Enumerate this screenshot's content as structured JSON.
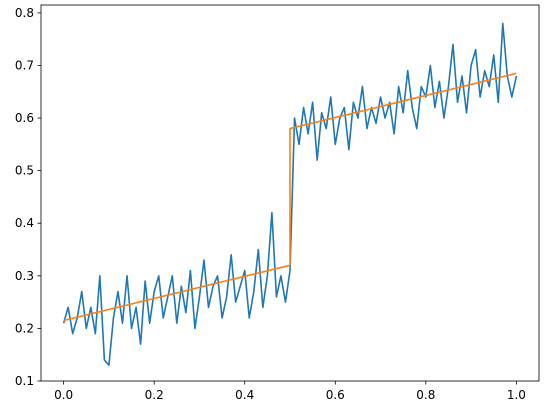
{
  "chart_data": {
    "type": "line",
    "title": "",
    "xlabel": "",
    "ylabel": "",
    "xlim": [
      -0.05,
      1.05
    ],
    "ylim": [
      0.1,
      0.815
    ],
    "xticks": [
      {
        "value": 0.0,
        "label": "0.0"
      },
      {
        "value": 0.2,
        "label": "0.2"
      },
      {
        "value": 0.4,
        "label": "0.4"
      },
      {
        "value": 0.6,
        "label": "0.6"
      },
      {
        "value": 0.8,
        "label": "0.8"
      },
      {
        "value": 1.0,
        "label": "1.0"
      }
    ],
    "yticks": [
      {
        "value": 0.1,
        "label": "0.1"
      },
      {
        "value": 0.2,
        "label": "0.2"
      },
      {
        "value": 0.3,
        "label": "0.3"
      },
      {
        "value": 0.4,
        "label": "0.4"
      },
      {
        "value": 0.5,
        "label": "0.5"
      },
      {
        "value": 0.6,
        "label": "0.6"
      },
      {
        "value": 0.7,
        "label": "0.7"
      },
      {
        "value": 0.8,
        "label": "0.8"
      }
    ],
    "grid": false,
    "legend": false,
    "series": [
      {
        "color": "#1f77b4",
        "x": [
          0.0,
          0.01,
          0.02,
          0.03,
          0.04,
          0.05,
          0.06,
          0.07,
          0.08,
          0.09,
          0.1,
          0.11,
          0.12,
          0.13,
          0.14,
          0.15,
          0.16,
          0.17,
          0.18,
          0.19,
          0.2,
          0.21,
          0.22,
          0.23,
          0.24,
          0.25,
          0.26,
          0.27,
          0.28,
          0.29,
          0.3,
          0.31,
          0.32,
          0.33,
          0.34,
          0.35,
          0.36,
          0.37,
          0.38,
          0.39,
          0.4,
          0.41,
          0.42,
          0.43,
          0.44,
          0.45,
          0.46,
          0.47,
          0.48,
          0.49,
          0.5,
          0.51,
          0.52,
          0.53,
          0.54,
          0.55,
          0.56,
          0.57,
          0.58,
          0.59,
          0.6,
          0.61,
          0.62,
          0.63,
          0.64,
          0.65,
          0.66,
          0.67,
          0.68,
          0.69,
          0.7,
          0.71,
          0.72,
          0.73,
          0.74,
          0.75,
          0.76,
          0.77,
          0.78,
          0.79,
          0.8,
          0.81,
          0.82,
          0.83,
          0.84,
          0.85,
          0.86,
          0.87,
          0.88,
          0.89,
          0.9,
          0.91,
          0.92,
          0.93,
          0.94,
          0.95,
          0.96,
          0.97,
          0.98,
          0.99,
          1.0
        ],
        "y": [
          0.21,
          0.24,
          0.19,
          0.22,
          0.27,
          0.2,
          0.24,
          0.19,
          0.3,
          0.14,
          0.13,
          0.22,
          0.27,
          0.21,
          0.3,
          0.2,
          0.24,
          0.17,
          0.29,
          0.21,
          0.27,
          0.3,
          0.22,
          0.26,
          0.3,
          0.21,
          0.28,
          0.23,
          0.31,
          0.2,
          0.26,
          0.33,
          0.24,
          0.28,
          0.3,
          0.22,
          0.26,
          0.34,
          0.25,
          0.28,
          0.31,
          0.22,
          0.27,
          0.35,
          0.24,
          0.3,
          0.42,
          0.26,
          0.3,
          0.25,
          0.31,
          0.6,
          0.55,
          0.62,
          0.57,
          0.63,
          0.52,
          0.61,
          0.58,
          0.64,
          0.55,
          0.6,
          0.62,
          0.54,
          0.63,
          0.6,
          0.66,
          0.58,
          0.62,
          0.59,
          0.64,
          0.6,
          0.63,
          0.57,
          0.66,
          0.61,
          0.69,
          0.62,
          0.58,
          0.66,
          0.64,
          0.7,
          0.62,
          0.67,
          0.6,
          0.66,
          0.74,
          0.63,
          0.68,
          0.61,
          0.7,
          0.73,
          0.64,
          0.69,
          0.66,
          0.72,
          0.63,
          0.78,
          0.68,
          0.64,
          0.68
        ]
      },
      {
        "color": "#ff7f0e",
        "x": [
          0.0,
          0.5,
          0.5,
          1.0
        ],
        "y": [
          0.215,
          0.32,
          0.58,
          0.685
        ]
      }
    ]
  }
}
